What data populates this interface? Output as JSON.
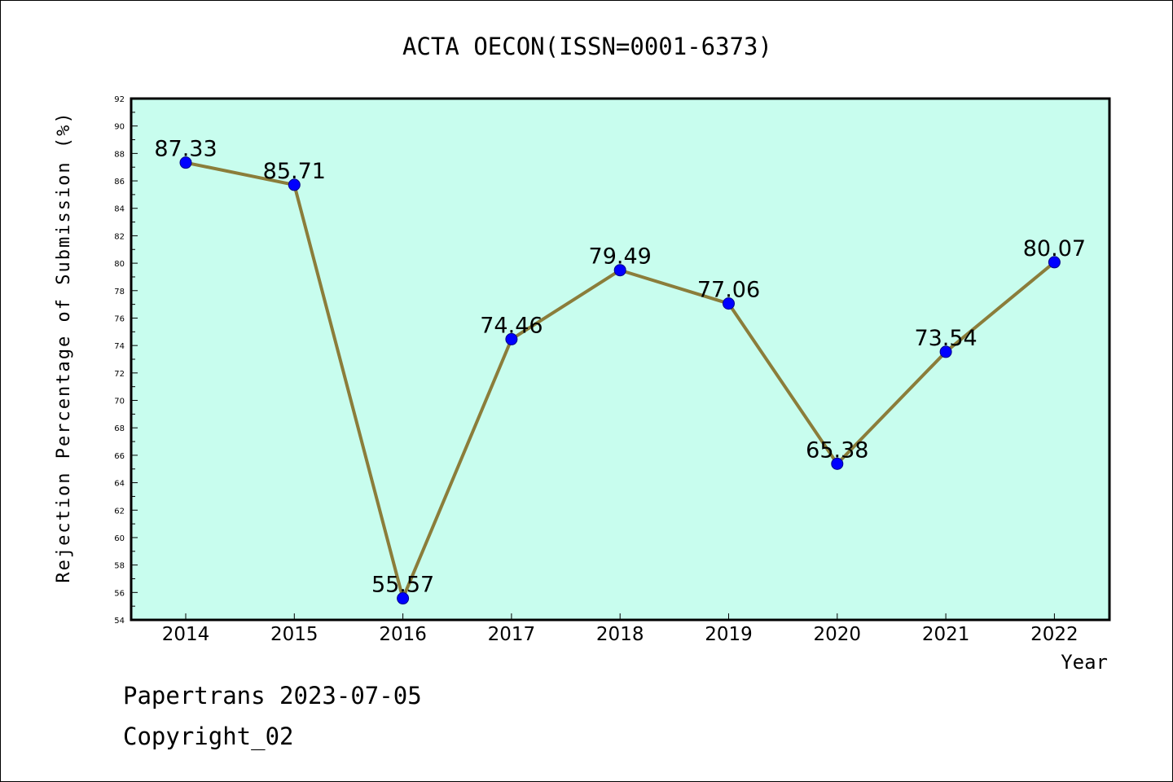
{
  "footer": {
    "line1": "Papertrans 2023-07-05",
    "line2": "Copyright_02"
  },
  "chart_data": {
    "type": "line",
    "title": "ACTA OECON(ISSN=0001-6373)",
    "xlabel": "Year",
    "ylabel": "Rejection Percentage of Submission (%)",
    "categories": [
      "2014",
      "2015",
      "2016",
      "2017",
      "2018",
      "2019",
      "2020",
      "2021",
      "2022"
    ],
    "series": [
      {
        "values": [
          87.33,
          85.71,
          55.57,
          74.46,
          79.49,
          77.06,
          65.38,
          73.54,
          80.07
        ],
        "labels": [
          "87.33",
          "85.71",
          "55.57",
          "74.46",
          "79.49",
          "77.06",
          "65.38",
          "73.54",
          "80.07"
        ]
      }
    ],
    "ylim": [
      54,
      92
    ],
    "yticks": [
      "54",
      "56",
      "58",
      "60",
      "62",
      "64",
      "66",
      "68",
      "70",
      "72",
      "74",
      "76",
      "78",
      "80",
      "82",
      "84",
      "86",
      "88",
      "90",
      "92"
    ],
    "grid": false,
    "legend": "none",
    "colors": {
      "plot_background": "#c8fdee",
      "line": "#8b7d3a",
      "marker": "#0000ff",
      "marker_edge": "#00008b"
    }
  }
}
